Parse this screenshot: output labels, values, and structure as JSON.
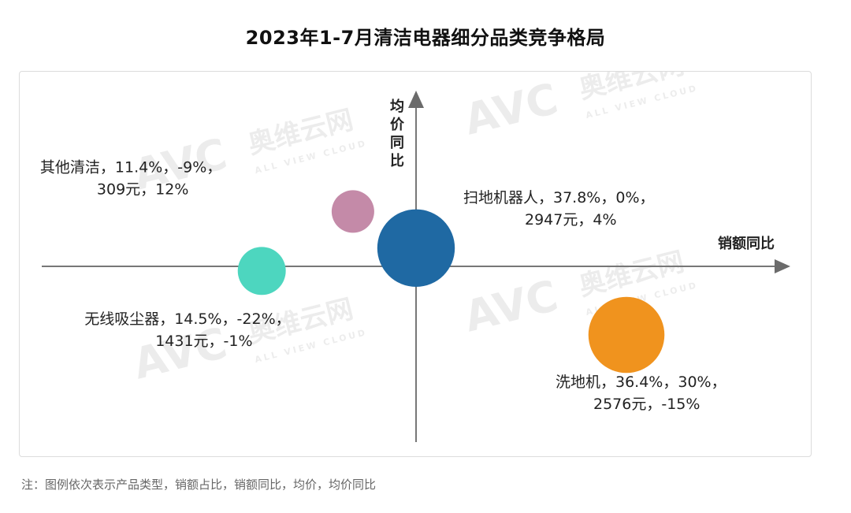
{
  "title": "2023年1-7月清洁电器细分品类竞争格局",
  "note": "注：图例依次表示产品类型，销额占比，销额同比，均价，均价同比",
  "watermark": {
    "logo": "AVC",
    "cn": "奥维云网",
    "en": "ALL VIEW CLOUD"
  },
  "chart_data": {
    "type": "scatter",
    "subtype": "bubble",
    "xlabel": "销额同比",
    "ylabel": "均价同比",
    "xunit": "%",
    "yunit": "%",
    "points": [
      {
        "category": "扫地机器人",
        "share_pct": 37.8,
        "sales_yoy_pct": 0,
        "avg_price": 2947,
        "price_yoy_pct": 4,
        "color": "#1f69a3",
        "label_line1": "扫地机器人，37.8%，0%，",
        "label_line2": "2947元，4%"
      },
      {
        "category": "洗地机",
        "share_pct": 36.4,
        "sales_yoy_pct": 30,
        "avg_price": 2576,
        "price_yoy_pct": -15,
        "color": "#f0931e",
        "label_line1": "洗地机，36.4%，30%，",
        "label_line2": "2576元，-15%"
      },
      {
        "category": "无线吸尘器",
        "share_pct": 14.5,
        "sales_yoy_pct": -22,
        "avg_price": 1431,
        "price_yoy_pct": -1,
        "color": "#4dd6bf",
        "label_line1": "无线吸尘器，14.5%，-22%，",
        "label_line2": "1431元，-1%"
      },
      {
        "category": "其他清洁",
        "share_pct": 11.4,
        "sales_yoy_pct": -9,
        "avg_price": 309,
        "price_yoy_pct": 12,
        "color": "#c48aa8",
        "label_line1": "其他清洁，11.4%，-9%，",
        "label_line2": "309元，12%"
      }
    ]
  }
}
